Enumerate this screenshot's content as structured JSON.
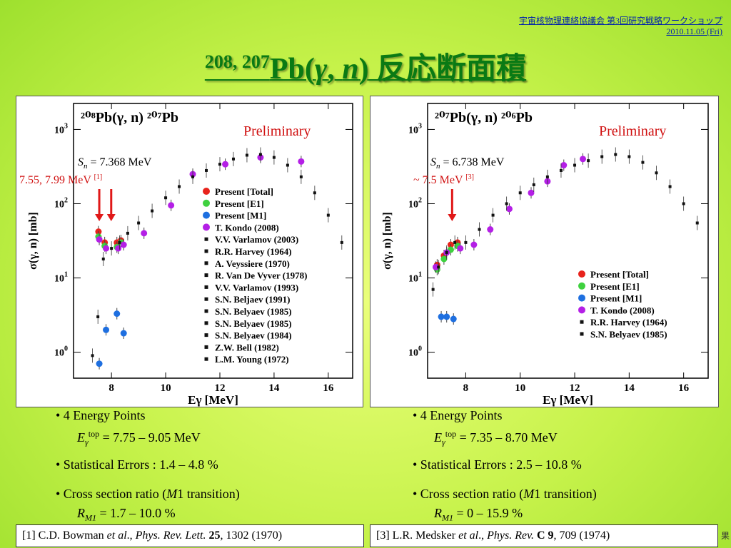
{
  "header": {
    "line1": "宇宙核物理連絡協議会 第3回研究戦略ワークショップ",
    "line2": "2010.11.05 (Fri)"
  },
  "title": {
    "sup": "208, 207",
    "pb": "Pb(",
    "gamma": "γ",
    ",": ",",
    "n": "n",
    ")": ")",
    "jp": " 反応断面積"
  },
  "colors": {
    "total": "#e8231c",
    "e1": "#3fd13f",
    "m1": "#1e6fe0",
    "kondo": "#b41fe6",
    "arrow": "#e01818",
    "label": "#d01010",
    "title": "#0a7a14"
  },
  "chart_data": [
    {
      "type": "scatter",
      "reaction": "²⁰⁸Pb(γ, n) ²⁰⁷Pb",
      "xlabel": "Eγ [MeV]",
      "ylabel": "σ(γ, n) [mb]",
      "xlim": [
        6.6,
        16.9
      ],
      "ylim_log10": [
        -0.35,
        3.35
      ],
      "yscale": "log",
      "xticks": [
        8,
        10,
        12,
        14,
        16
      ],
      "yticks": [
        "10^0",
        "10^1",
        "10^2",
        "10^3"
      ],
      "annotations": {
        "preliminary": "Preliminary",
        "sn_label": "S",
        "sn_sub": "n",
        "sn_value": " = 7.368 MeV",
        "m1_label": "7.55, 7.99 MeV ",
        "m1_ref": "[1]"
      },
      "arrows_at_MeV": [
        7.55,
        7.99
      ],
      "legend": [
        "Present [Total]",
        "Present [E1]",
        "Present [M1]",
        "T. Kondo (2008)",
        "V.V. Varlamov (2003)",
        "R.R. Harvey (1964)",
        "A. Veyssiere (1970)",
        "R. Van De Vyver (1978)",
        "V.V. Varlamov (1993)",
        "S.N. Beljaev (1991)",
        "S.N. Belyaev (1985)",
        "S.N. Belyaev (1985)",
        "S.N. Belyaev (1984)",
        "Z.W. Bell (1982)",
        "L.M. Young (1972)"
      ],
      "series": [
        {
          "name": "Present [Total]",
          "x": [
            7.52,
            7.75,
            8.2,
            8.35
          ],
          "y": [
            42,
            30,
            30,
            32
          ]
        },
        {
          "name": "Present [E1]",
          "x": [
            7.52,
            7.75,
            8.2,
            8.35
          ],
          "y": [
            36,
            27,
            26,
            30
          ]
        },
        {
          "name": "Present [M1]",
          "x": [
            7.55,
            7.8,
            8.2,
            8.45
          ],
          "y": [
            0.7,
            2.0,
            3.3,
            1.8
          ]
        },
        {
          "name": "T. Kondo (2008)",
          "x": [
            7.55,
            7.8,
            8.25,
            8.45,
            9.2,
            10.2,
            11.0,
            12.2,
            13.5,
            15.0
          ],
          "y": [
            33,
            25,
            25,
            28,
            40,
            95,
            250,
            340,
            420,
            370
          ]
        },
        {
          "name": "Other experiments",
          "x": [
            7.1,
            7.3,
            7.5,
            7.7,
            8.0,
            8.3,
            8.6,
            9.0,
            9.5,
            10.0,
            10.5,
            11.0,
            11.5,
            12.0,
            12.5,
            13.0,
            13.5,
            14.0,
            14.5,
            15.0,
            15.5,
            16.0,
            16.5
          ],
          "y": [
            0.4,
            0.9,
            3,
            18,
            25,
            30,
            40,
            55,
            80,
            120,
            170,
            230,
            280,
            340,
            400,
            450,
            460,
            420,
            330,
            230,
            140,
            70,
            30
          ]
        }
      ]
    },
    {
      "type": "scatter",
      "reaction": "²⁰⁷Pb(γ, n) ²⁰⁶Pb",
      "xlabel": "Eγ [MeV]",
      "ylabel": "σ(γ, n) [mb]",
      "xlim": [
        6.6,
        16.9
      ],
      "ylim_log10": [
        -0.35,
        3.35
      ],
      "yscale": "log",
      "xticks": [
        8,
        10,
        12,
        14,
        16
      ],
      "yticks": [
        "10^0",
        "10^1",
        "10^2",
        "10^3"
      ],
      "annotations": {
        "preliminary": "Preliminary",
        "sn_label": "S",
        "sn_sub": "n",
        "sn_value": " = 6.738 MeV",
        "m1_label": "~ 7.5 MeV ",
        "m1_ref": "[3]"
      },
      "arrows_at_MeV": [
        7.5
      ],
      "legend": [
        "Present [Total]",
        "Present [E1]",
        "Present [M1]",
        "T. Kondo (2008)",
        "R.R. Harvey (1964)",
        "S.N. Belyaev (1985)"
      ],
      "series": [
        {
          "name": "Present [Total]",
          "x": [
            6.95,
            7.2,
            7.45,
            7.7
          ],
          "y": [
            15,
            20,
            28,
            30
          ]
        },
        {
          "name": "Present [E1]",
          "x": [
            6.95,
            7.2,
            7.45,
            7.7
          ],
          "y": [
            13,
            18,
            24,
            27
          ]
        },
        {
          "name": "Present [M1]",
          "x": [
            7.1,
            7.3,
            7.55
          ],
          "y": [
            3.0,
            3.0,
            2.8
          ]
        },
        {
          "name": "T. Kondo (2008)",
          "x": [
            6.9,
            7.3,
            7.8,
            8.3,
            8.9,
            9.6,
            10.4,
            11.0,
            11.6,
            12.3
          ],
          "y": [
            14,
            22,
            25,
            28,
            45,
            85,
            140,
            200,
            330,
            400
          ]
        },
        {
          "name": "Other experiments",
          "x": [
            6.8,
            7.0,
            7.3,
            7.6,
            8.0,
            8.5,
            9.0,
            9.5,
            10.0,
            10.5,
            11.0,
            11.5,
            12.0,
            12.5,
            13.0,
            13.5,
            14.0,
            14.5,
            15.0,
            15.5,
            16.0,
            16.5
          ],
          "y": [
            7,
            14,
            22,
            30,
            30,
            45,
            70,
            100,
            140,
            180,
            230,
            280,
            330,
            380,
            430,
            460,
            430,
            360,
            260,
            170,
            100,
            55
          ]
        }
      ]
    }
  ],
  "bullets": {
    "left": {
      "energy_points": "• 4 Energy Points",
      "etop_label": "E",
      "etop_sub": "γ",
      "etop_sup": "top",
      "etop_value": " = 7.75 – 9.05 MeV",
      "stat": "• Statistical Errors : 1.4 – 4.8 %",
      "ratio_a": "• Cross section ratio (",
      "ratio_m": "M",
      "ratio_b": "1 transition)",
      "r_label": "R",
      "r_sub": "M1",
      "r_value": " = 1.7 – 10.0 %"
    },
    "right": {
      "energy_points": "• 4 Energy Points",
      "etop_label": "E",
      "etop_sub": "γ",
      "etop_sup": "top",
      "etop_value": " = 7.35 – 8.70 MeV",
      "stat": "• Statistical Errors : 2.5 – 10.8 %",
      "ratio_a": "• Cross section ratio (",
      "ratio_m": "M",
      "ratio_b": "1 transition)",
      "r_label": "R",
      "r_sub": "M1",
      "r_value": " = 0 – 15.9 %"
    }
  },
  "refs": {
    "left": {
      "num": "[1]  C.D. Bowman ",
      "etal": "et al",
      "sep": "., ",
      "journal": "Phys. Rev. Lett.",
      "vol": " 25",
      "rest": ", 1302 (1970)"
    },
    "right": {
      "num": "[3]  L.R. Medsker ",
      "etal": "et al",
      "sep": "., ",
      "journal": "Phys. Rev.",
      "vol": " C 9",
      "rest": ", 709 (1974)"
    }
  },
  "page_mark": "果"
}
